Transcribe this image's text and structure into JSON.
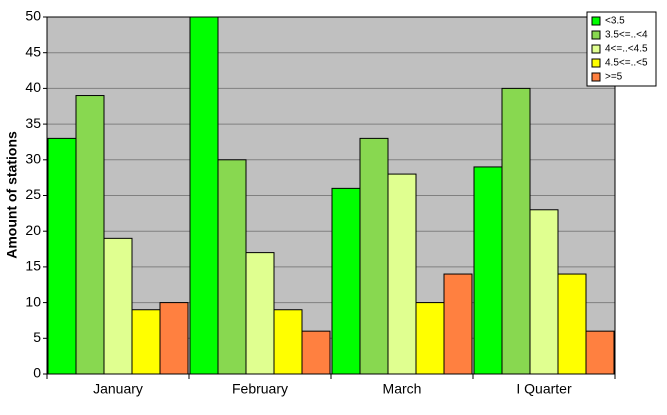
{
  "chart_data": {
    "type": "bar",
    "y_label": "Amount of stations",
    "categories": [
      "January",
      "February",
      "March",
      "I Quarter"
    ],
    "series": [
      {
        "name": "<3.5",
        "color": "#00ff00",
        "values": [
          33,
          50,
          26,
          29
        ]
      },
      {
        "name": "3.5<=..<4",
        "color": "#88d850",
        "values": [
          39,
          30,
          33,
          40
        ]
      },
      {
        "name": "4<=..<4.5",
        "color": "#e0ff90",
        "values": [
          19,
          17,
          28,
          23
        ]
      },
      {
        "name": "4.5<=..<5",
        "color": "#ffff00",
        "values": [
          9,
          9,
          10,
          14
        ]
      },
      {
        "name": ">=5",
        "color": "#ff8040",
        "values": [
          10,
          6,
          14,
          6
        ]
      }
    ],
    "ylim": [
      0,
      50
    ],
    "yticks": [
      0,
      5,
      10,
      15,
      20,
      25,
      30,
      35,
      40,
      45,
      50
    ],
    "grid": true,
    "legend": "top-right"
  }
}
